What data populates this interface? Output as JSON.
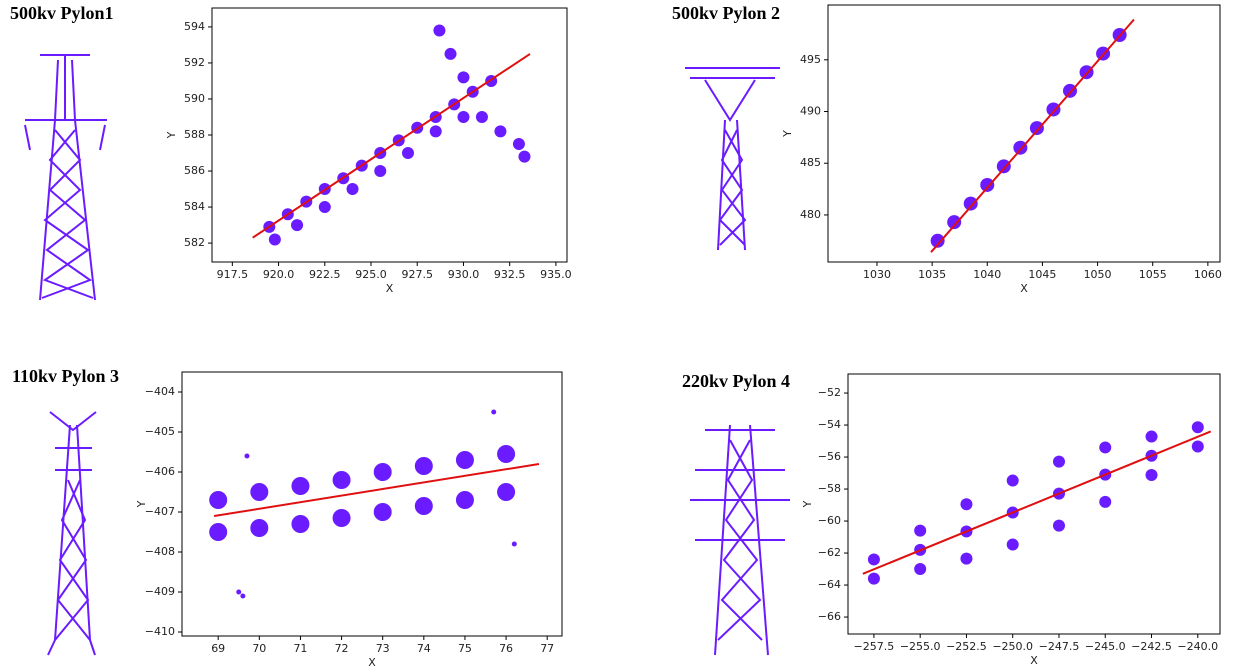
{
  "chart_data": [
    {
      "type": "scatter",
      "title": "500kv Pylon1",
      "xlabel": "X",
      "ylabel": "Y",
      "xlim": [
        916.4,
        935.6
      ],
      "ylim": [
        580.95,
        595.05
      ],
      "xticks": [
        917.5,
        {
          "value": 920,
          "label": "920.0"
        },
        922.5,
        {
          "value": 925,
          "label": "925.0"
        },
        927.5,
        {
          "value": 930,
          "label": "930.0"
        },
        932.5,
        {
          "value": 935,
          "label": "935.0"
        }
      ],
      "yticks": [
        582,
        584,
        586,
        588,
        590,
        592,
        594
      ],
      "series": [
        {
          "color": "#6a1bff",
          "size": 6,
          "x": [
            919.5,
            920.5,
            921.5,
            922.5,
            923.5,
            924.5,
            925.5,
            926.5,
            927.5,
            928.5,
            929.5,
            930.5,
            931.5,
            919.8,
            921,
            922.5,
            924,
            925.5,
            927,
            928.5,
            930,
            928.7,
            929.3,
            930,
            931,
            932,
            933,
            933.3
          ],
          "y": [
            582.9,
            583.6,
            584.3,
            585,
            585.6,
            586.3,
            587,
            587.7,
            588.4,
            589,
            589.7,
            590.4,
            591,
            582.2,
            583,
            584,
            585,
            586,
            587,
            588.2,
            589,
            593.8,
            592.5,
            591.2,
            589,
            588.2,
            587.5,
            586.8
          ]
        }
      ],
      "fit": {
        "color": "#e01010",
        "x": [
          918.6,
          933.6
        ],
        "y": [
          582.3,
          592.5
        ]
      }
    },
    {
      "type": "scatter",
      "title": "500kv Pylon 2",
      "xlabel": "X",
      "ylabel": "Y",
      "xlim": [
        1025.56,
        1061.1
      ],
      "ylim": [
        475.45,
        500.3
      ],
      "xticks": [
        1030,
        1035,
        1040,
        1045,
        1050,
        1055,
        1060
      ],
      "yticks": [
        480,
        485,
        490,
        495
      ],
      "series": [
        {
          "color": "#6a1bff",
          "size": 7,
          "x": [
            1035.5,
            1037,
            1038.5,
            1040,
            1041.5,
            1043,
            1044.5,
            1046,
            1047.5,
            1049,
            1050.5,
            1052
          ],
          "y": [
            477.5,
            479.3,
            481.1,
            482.9,
            484.7,
            486.5,
            488.4,
            490.2,
            492,
            493.8,
            495.6,
            497.4
          ]
        }
      ],
      "fit": {
        "color": "#e01010",
        "x": [
          1034.9,
          1053.3
        ],
        "y": [
          476.4,
          498.9
        ]
      }
    },
    {
      "type": "scatter",
      "title": "110kv Pylon 3",
      "xlabel": "X",
      "ylabel": "Y",
      "xlim": [
        68.12,
        77.36
      ],
      "ylim": [
        -410.1,
        -403.5
      ],
      "xticks": [
        69,
        70,
        71,
        72,
        73,
        74,
        75,
        76,
        77
      ],
      "yticks": [
        {
          "value": -410,
          "label": "−410"
        },
        {
          "value": -409,
          "label": "−409"
        },
        {
          "value": -408,
          "label": "−408"
        },
        {
          "value": -407,
          "label": "−407"
        },
        {
          "value": -406,
          "label": "−406"
        },
        {
          "value": -405,
          "label": "−405"
        },
        {
          "value": -404,
          "label": "−404"
        }
      ],
      "series": [
        {
          "color": "#6a1bff",
          "size": 9,
          "x": [
            69,
            70,
            71,
            72,
            73,
            74,
            75,
            76,
            69,
            70,
            71,
            72,
            73,
            74,
            75,
            76
          ],
          "y": [
            -406.7,
            -406.5,
            -406.35,
            -406.2,
            -406,
            -405.85,
            -405.7,
            -405.55,
            -407.5,
            -407.4,
            -407.3,
            -407.15,
            -407,
            -406.85,
            -406.7,
            -406.5
          ]
        },
        {
          "color": "#6a1bff",
          "size": 2.5,
          "x": [
            69.6,
            69.5,
            75.7,
            76.2,
            69.7
          ],
          "y": [
            -409.1,
            -409,
            -404.5,
            -407.8,
            -405.6
          ]
        }
      ],
      "fit": {
        "color": "#e01010",
        "x": [
          68.9,
          76.8
        ],
        "y": [
          -407.1,
          -405.8
        ]
      }
    },
    {
      "type": "scatter",
      "title": "220kv Pylon 4",
      "xlabel": "X",
      "ylabel": "Y",
      "xlim": [
        -258.9,
        -238.8
      ],
      "ylim": [
        -67.06,
        -50.81
      ],
      "xticks": [
        {
          "value": -257.5,
          "label": "−257.5"
        },
        {
          "value": -255,
          "label": "−255.0"
        },
        {
          "value": -252.5,
          "label": "−252.5"
        },
        {
          "value": -250,
          "label": "−250.0"
        },
        {
          "value": -247.5,
          "label": "−247.5"
        },
        {
          "value": -245,
          "label": "−245.0"
        },
        {
          "value": -242.5,
          "label": "−242.5"
        },
        {
          "value": -240,
          "label": "−240.0"
        }
      ],
      "yticks": [
        {
          "value": -66,
          "label": "−66"
        },
        {
          "value": -64,
          "label": "−64"
        },
        {
          "value": -62,
          "label": "−62"
        },
        {
          "value": -60,
          "label": "−60"
        },
        {
          "value": -58,
          "label": "−58"
        },
        {
          "value": -56,
          "label": "−56"
        },
        {
          "value": -54,
          "label": "−54"
        },
        {
          "value": -52,
          "label": "−52"
        }
      ],
      "series": [
        {
          "color": "#6a1bff",
          "size": 6,
          "x": [
            -257.5,
            -255,
            -252.5,
            -250,
            -247.5,
            -245,
            -242.5,
            -240,
            -257.5,
            -255,
            -252.5,
            -250,
            -247.5,
            -245,
            -242.5,
            -240,
            -255,
            -252.5,
            -250,
            -247.5,
            -245,
            -242.5
          ],
          "y": [
            -62.4,
            -60.6,
            -58.95,
            -57.47,
            -56.29,
            -55.4,
            -54.72,
            -54.14,
            -63.6,
            -63,
            -62.35,
            -61.47,
            -60.29,
            -58.8,
            -57.12,
            -55.34,
            -61.8,
            -60.65,
            -59.47,
            -58.29,
            -57.1,
            -55.92
          ]
        }
      ],
      "fit": {
        "color": "#e01010",
        "x": [
          -258.1,
          -239.3
        ],
        "y": [
          -63.3,
          -54.4
        ]
      }
    }
  ]
}
